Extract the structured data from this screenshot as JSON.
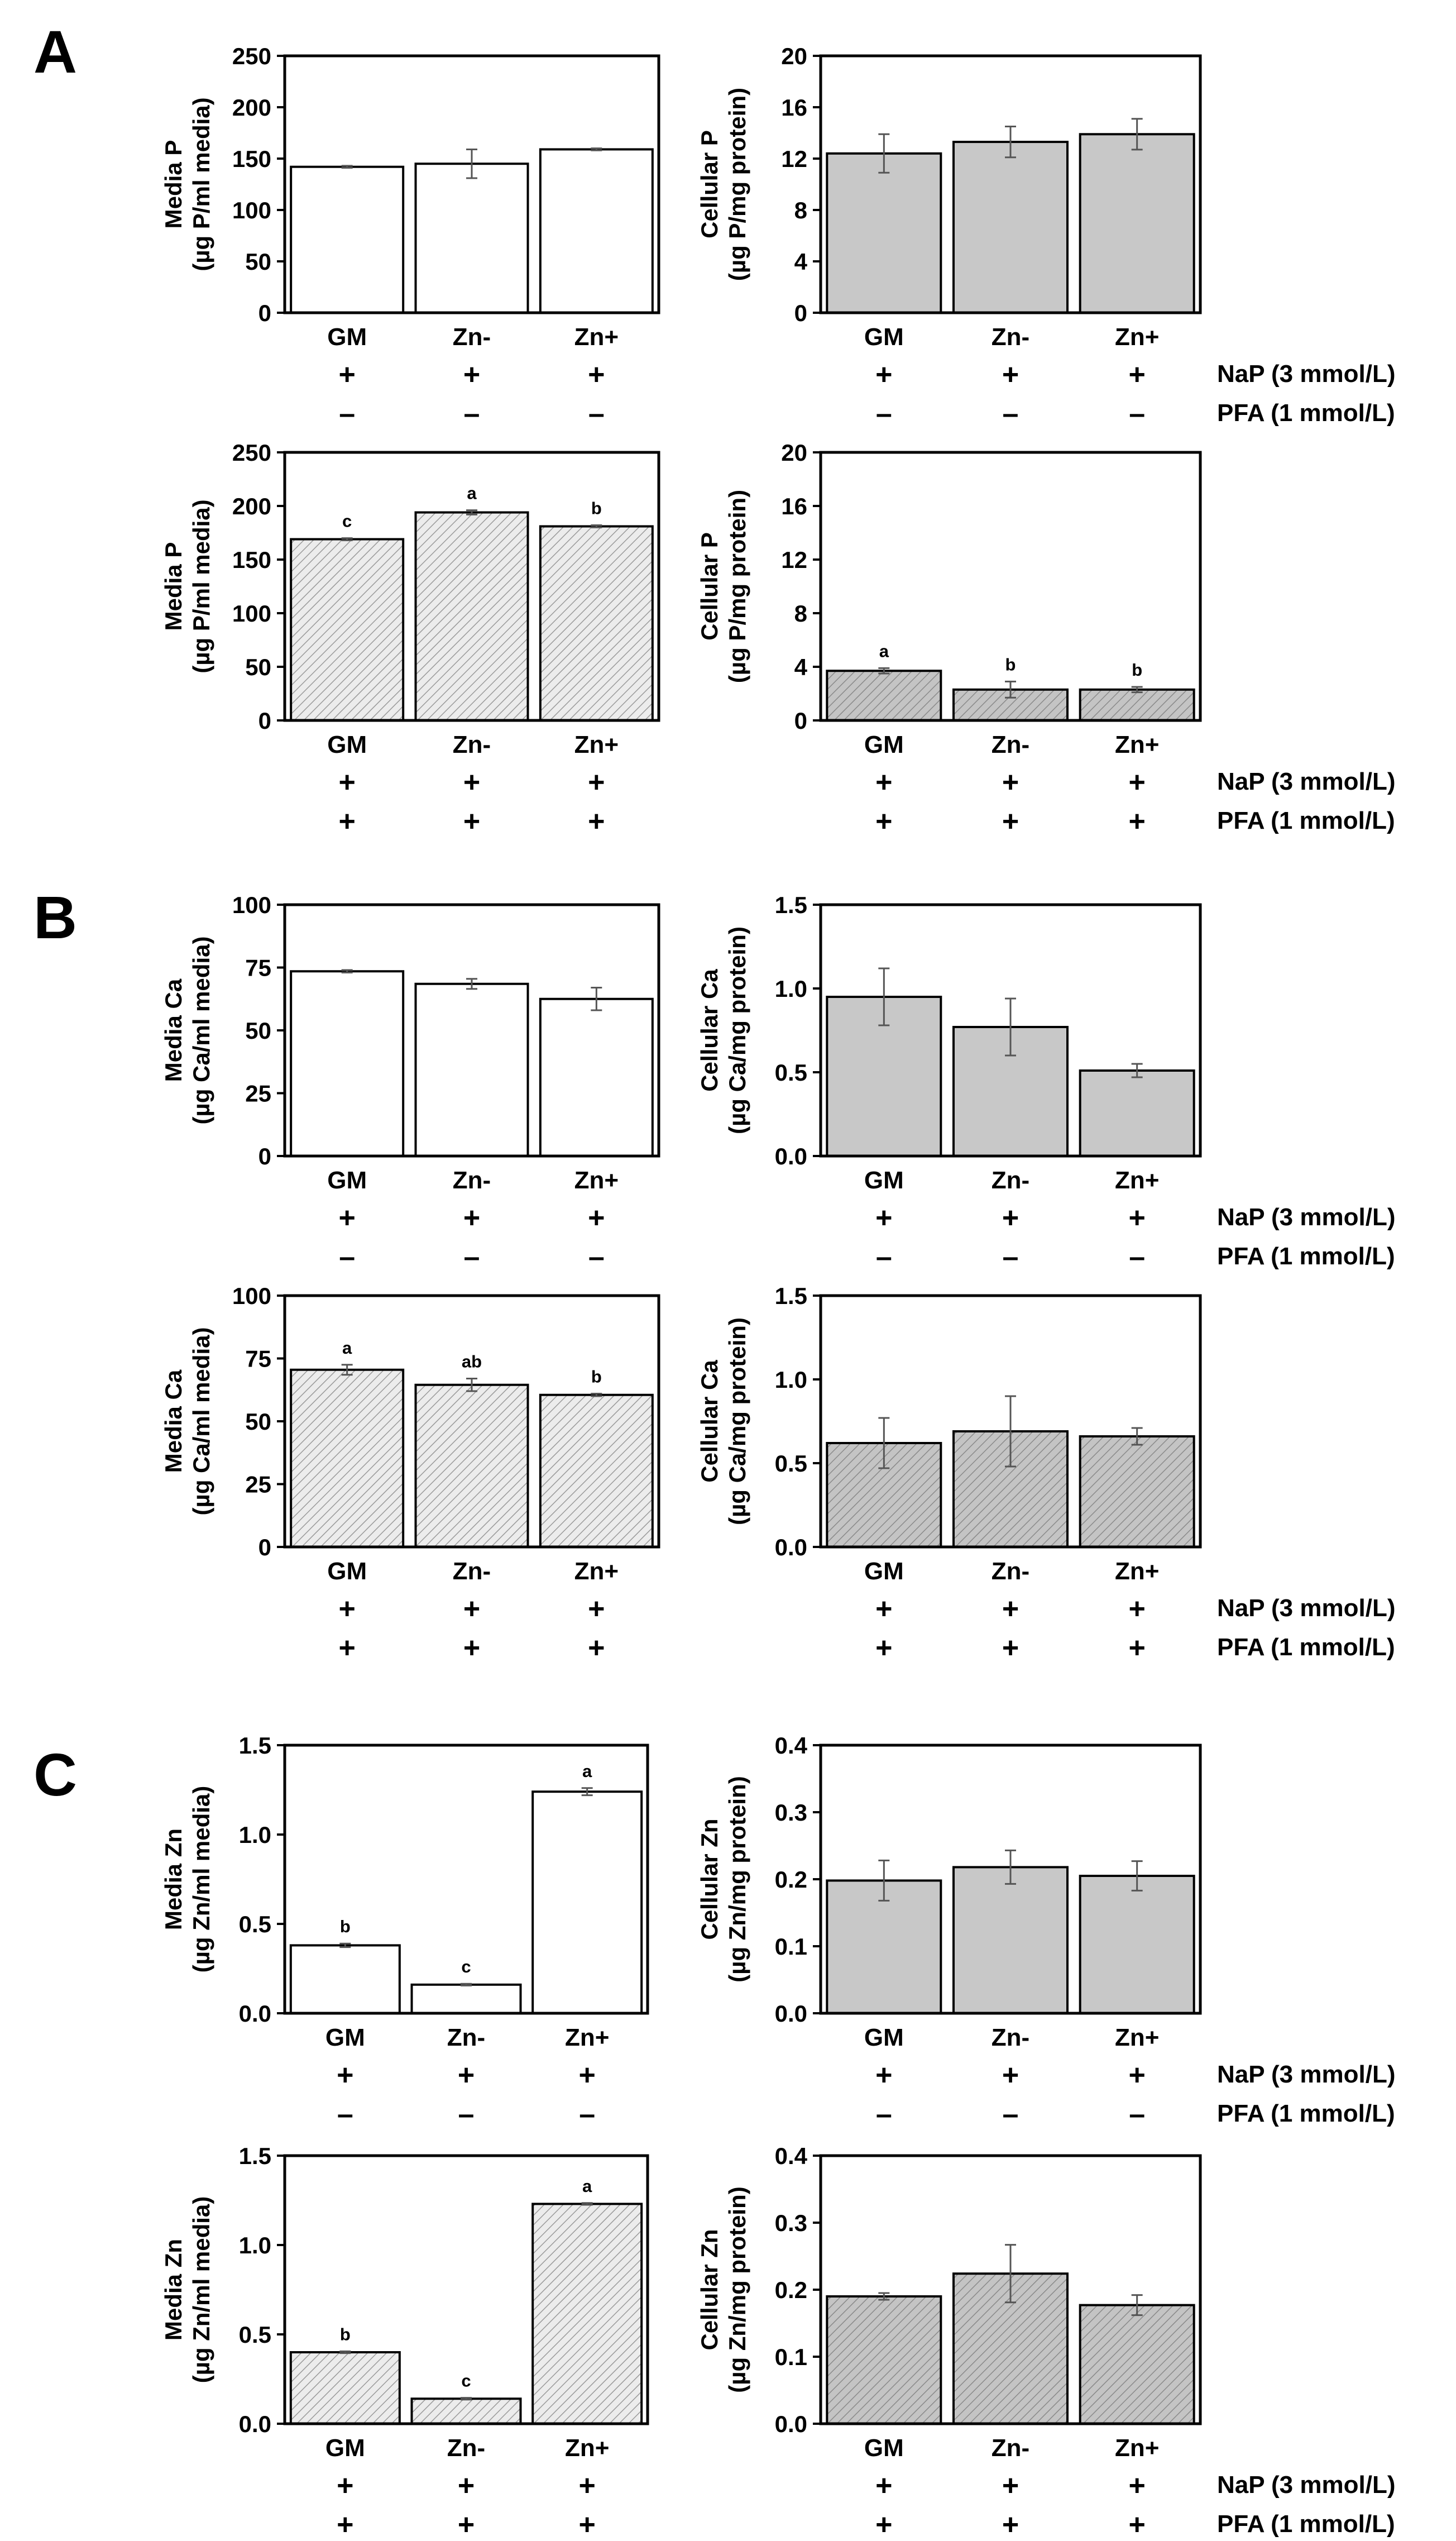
{
  "condition_labels": [
    "NaP (3 mmol/L)",
    "PFA (1 mmol/L)"
  ],
  "colors": {
    "media_fill": "#ffffff",
    "media_pfa_fill": "#ececec",
    "cell_fill": "#c8c8c8",
    "cell_pfa_fill": "#bcbcbc",
    "hatch": "#9a9a9a",
    "axis": "#000000"
  },
  "chart_data": [
    {
      "id": "A-media-noPFA",
      "panel": "A",
      "type": "bar",
      "ylabel_lines": [
        "Media P",
        "(µg P/ml media)"
      ],
      "ylim": [
        0,
        250
      ],
      "ticks": [
        "0",
        "50",
        "100",
        "150",
        "200",
        "250"
      ],
      "categories": [
        "GM",
        "Zn-",
        "Zn+"
      ],
      "values": [
        142,
        145,
        159
      ],
      "errors": [
        1,
        14,
        1
      ],
      "sig": [
        "",
        "",
        ""
      ],
      "nap": [
        "+",
        "+",
        "+"
      ],
      "pfa": [
        "–",
        "–",
        "–"
      ]
    },
    {
      "id": "A-cell-noPFA",
      "panel": "A",
      "type": "bar",
      "ylabel_lines": [
        "Cellular P",
        "(µg P/mg protein)"
      ],
      "ylim": [
        0,
        20
      ],
      "ticks": [
        "0",
        "4",
        "8",
        "12",
        "16",
        "20"
      ],
      "categories": [
        "GM",
        "Zn-",
        "Zn+"
      ],
      "values": [
        12.4,
        13.3,
        13.9
      ],
      "errors": [
        1.5,
        1.2,
        1.2
      ],
      "sig": [
        "",
        "",
        ""
      ],
      "nap": [
        "+",
        "+",
        "+"
      ],
      "pfa": [
        "–",
        "–",
        "–"
      ]
    },
    {
      "id": "A-media-PFA",
      "panel": "A",
      "type": "bar",
      "ylabel_lines": [
        "Media P",
        "(µg P/ml media)"
      ],
      "ylim": [
        0,
        250
      ],
      "ticks": [
        "0",
        "50",
        "100",
        "150",
        "200",
        "250"
      ],
      "categories": [
        "GM",
        "Zn-",
        "Zn+"
      ],
      "values": [
        169,
        194,
        181
      ],
      "errors": [
        1,
        2,
        1
      ],
      "sig": [
        "c",
        "a",
        "b"
      ],
      "nap": [
        "+",
        "+",
        "+"
      ],
      "pfa": [
        "+",
        "+",
        "+"
      ]
    },
    {
      "id": "A-cell-PFA",
      "panel": "A",
      "type": "bar",
      "ylabel_lines": [
        "Cellular P",
        "(µg P/mg protein)"
      ],
      "ylim": [
        0,
        20
      ],
      "ticks": [
        "0",
        "4",
        "8",
        "12",
        "16",
        "20"
      ],
      "categories": [
        "GM",
        "Zn-",
        "Zn+"
      ],
      "values": [
        3.7,
        2.3,
        2.3
      ],
      "errors": [
        0.2,
        0.6,
        0.2
      ],
      "sig": [
        "a",
        "b",
        "b"
      ],
      "nap": [
        "+",
        "+",
        "+"
      ],
      "pfa": [
        "+",
        "+",
        "+"
      ]
    },
    {
      "id": "B-media-noPFA",
      "panel": "B",
      "type": "bar",
      "ylabel_lines": [
        "Media Ca",
        "(µg Ca/ml media)"
      ],
      "ylim": [
        0,
        100
      ],
      "ticks": [
        "0",
        "25",
        "50",
        "75",
        "100"
      ],
      "categories": [
        "GM",
        "Zn-",
        "Zn+"
      ],
      "values": [
        73.5,
        68.5,
        62.5
      ],
      "errors": [
        0.5,
        2,
        4.5
      ],
      "sig": [
        "",
        "",
        ""
      ],
      "nap": [
        "+",
        "+",
        "+"
      ],
      "pfa": [
        "–",
        "–",
        "–"
      ]
    },
    {
      "id": "B-cell-noPFA",
      "panel": "B",
      "type": "bar",
      "ylabel_lines": [
        "Cellular Ca",
        "(µg Ca/mg protein)"
      ],
      "ylim": [
        0,
        1.5
      ],
      "ticks": [
        "0.0",
        "0.5",
        "1.0",
        "1.5"
      ],
      "categories": [
        "GM",
        "Zn-",
        "Zn+"
      ],
      "values": [
        0.95,
        0.77,
        0.51
      ],
      "errors": [
        0.17,
        0.17,
        0.04
      ],
      "sig": [
        "",
        "",
        ""
      ],
      "nap": [
        "+",
        "+",
        "+"
      ],
      "pfa": [
        "–",
        "–",
        "–"
      ]
    },
    {
      "id": "B-media-PFA",
      "panel": "B",
      "type": "bar",
      "ylabel_lines": [
        "Media Ca",
        "(µg Ca/ml media)"
      ],
      "ylim": [
        0,
        100
      ],
      "ticks": [
        "0",
        "25",
        "50",
        "75",
        "100"
      ],
      "categories": [
        "GM",
        "Zn-",
        "Zn+"
      ],
      "values": [
        70.5,
        64.5,
        60.5
      ],
      "errors": [
        2,
        2.5,
        0.5
      ],
      "sig": [
        "a",
        "ab",
        "b"
      ],
      "nap": [
        "+",
        "+",
        "+"
      ],
      "pfa": [
        "+",
        "+",
        "+"
      ]
    },
    {
      "id": "B-cell-PFA",
      "panel": "B",
      "type": "bar",
      "ylabel_lines": [
        "Cellular Ca",
        "(µg Ca/mg protein)"
      ],
      "ylim": [
        0,
        1.5
      ],
      "ticks": [
        "0.0",
        "0.5",
        "1.0",
        "1.5"
      ],
      "categories": [
        "GM",
        "Zn-",
        "Zn+"
      ],
      "values": [
        0.62,
        0.69,
        0.66
      ],
      "errors": [
        0.15,
        0.21,
        0.05
      ],
      "sig": [
        "",
        "",
        ""
      ],
      "nap": [
        "+",
        "+",
        "+"
      ],
      "pfa": [
        "+",
        "+",
        "+"
      ]
    },
    {
      "id": "C-media-noPFA",
      "panel": "C",
      "type": "bar",
      "ylabel_lines": [
        "Media Zn",
        "(µg Zn/ml media)"
      ],
      "ylim": [
        0,
        1.5
      ],
      "ticks": [
        "0.0",
        "0.5",
        "1.0",
        "1.5"
      ],
      "categories": [
        "GM",
        "Zn-",
        "Zn+"
      ],
      "values": [
        0.38,
        0.16,
        1.24
      ],
      "errors": [
        0.01,
        0.005,
        0.02
      ],
      "sig": [
        "b",
        "c",
        "a"
      ],
      "nap": [
        "+",
        "+",
        "+"
      ],
      "pfa": [
        "–",
        "–",
        "–"
      ]
    },
    {
      "id": "C-cell-noPFA",
      "panel": "C",
      "type": "bar",
      "ylabel_lines": [
        "Cellular Zn",
        "(µg Zn/mg protein)"
      ],
      "ylim": [
        0,
        0.4
      ],
      "ticks": [
        "0.0",
        "0.1",
        "0.2",
        "0.3",
        "0.4"
      ],
      "categories": [
        "GM",
        "Zn-",
        "Zn+"
      ],
      "values": [
        0.198,
        0.218,
        0.205
      ],
      "errors": [
        0.03,
        0.025,
        0.022
      ],
      "sig": [
        "",
        "",
        ""
      ],
      "nap": [
        "+",
        "+",
        "+"
      ],
      "pfa": [
        "–",
        "–",
        "–"
      ]
    },
    {
      "id": "C-media-PFA",
      "panel": "C",
      "type": "bar",
      "ylabel_lines": [
        "Media Zn",
        "(µg Zn/ml media)"
      ],
      "ylim": [
        0,
        1.5
      ],
      "ticks": [
        "0.0",
        "0.5",
        "1.0",
        "1.5"
      ],
      "categories": [
        "GM",
        "Zn-",
        "Zn+"
      ],
      "values": [
        0.4,
        0.14,
        1.23
      ],
      "errors": [
        0.005,
        0.005,
        0.005
      ],
      "sig": [
        "b",
        "c",
        "a"
      ],
      "nap": [
        "+",
        "+",
        "+"
      ],
      "pfa": [
        "+",
        "+",
        "+"
      ]
    },
    {
      "id": "C-cell-PFA",
      "panel": "C",
      "type": "bar",
      "ylabel_lines": [
        "Cellular Zn",
        "(µg Zn/mg protein)"
      ],
      "ylim": [
        0,
        0.4
      ],
      "ticks": [
        "0.0",
        "0.1",
        "0.2",
        "0.3",
        "0.4"
      ],
      "categories": [
        "GM",
        "Zn-",
        "Zn+"
      ],
      "values": [
        0.19,
        0.224,
        0.177
      ],
      "errors": [
        0.005,
        0.043,
        0.015
      ],
      "sig": [
        "",
        "",
        ""
      ],
      "nap": [
        "+",
        "+",
        "+"
      ],
      "pfa": [
        "+",
        "+",
        "+"
      ]
    }
  ]
}
